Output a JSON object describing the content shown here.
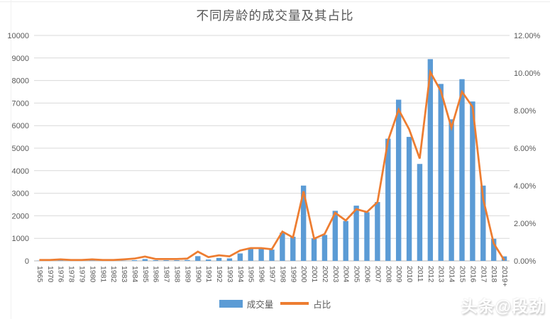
{
  "chart_data": {
    "type": "combo-bar-line",
    "title": "不同房龄的成交量及其占比",
    "categories": [
      "1965",
      "1970",
      "1976",
      "1978",
      "1979",
      "1980",
      "1981",
      "1982",
      "1983",
      "1984",
      "1985",
      "1986",
      "1987",
      "1988",
      "1989",
      "1990",
      "1991",
      "1992",
      "1993",
      "1994",
      "1995",
      "1996",
      "1997",
      "1998",
      "1999",
      "2000",
      "2001",
      "2002",
      "2003",
      "2004",
      "2005",
      "2006",
      "2007",
      "2008",
      "2009",
      "2010",
      "2011",
      "2012",
      "2013",
      "2014",
      "2015",
      "2016",
      "2017",
      "2018",
      "2019+"
    ],
    "series": [
      {
        "name": "成交量",
        "type": "bar",
        "axis": "left",
        "color": "#5B9BD5",
        "values": [
          10,
          5,
          20,
          5,
          5,
          15,
          5,
          5,
          10,
          30,
          80,
          30,
          30,
          30,
          40,
          210,
          60,
          130,
          110,
          330,
          530,
          530,
          500,
          1250,
          1070,
          3340,
          1000,
          1150,
          2220,
          1770,
          2450,
          2160,
          2610,
          5420,
          7150,
          5500,
          4300,
          8950,
          7850,
          6280,
          8060,
          7070,
          3340,
          980,
          200
        ]
      },
      {
        "name": "占比",
        "type": "line",
        "axis": "right",
        "color": "#ED7D31",
        "values": [
          0.05,
          0.05,
          0.08,
          0.05,
          0.05,
          0.08,
          0.05,
          0.05,
          0.08,
          0.12,
          0.23,
          0.1,
          0.1,
          0.1,
          0.12,
          0.49,
          0.2,
          0.3,
          0.24,
          0.55,
          0.68,
          0.68,
          0.62,
          1.56,
          1.25,
          3.7,
          1.18,
          1.43,
          2.56,
          2.15,
          2.75,
          2.6,
          3.13,
          6.4,
          8.05,
          7.0,
          5.45,
          10.05,
          9.04,
          7.09,
          9.0,
          8.2,
          3.3,
          0.93,
          0.03
        ]
      }
    ],
    "left_axis": {
      "min": 0,
      "max": 10000,
      "step": 1000,
      "labels": [
        "0",
        "1000",
        "2000",
        "3000",
        "4000",
        "5000",
        "6000",
        "7000",
        "8000",
        "9000",
        "10000"
      ]
    },
    "right_axis": {
      "min": 0,
      "max": 12,
      "step": 2,
      "labels": [
        "0.00%",
        "2.00%",
        "4.00%",
        "6.00%",
        "8.00%",
        "10.00%",
        "12.00%"
      ]
    },
    "grid": true,
    "legend_position": "bottom"
  },
  "watermark": {
    "text": "头条@段劲"
  }
}
